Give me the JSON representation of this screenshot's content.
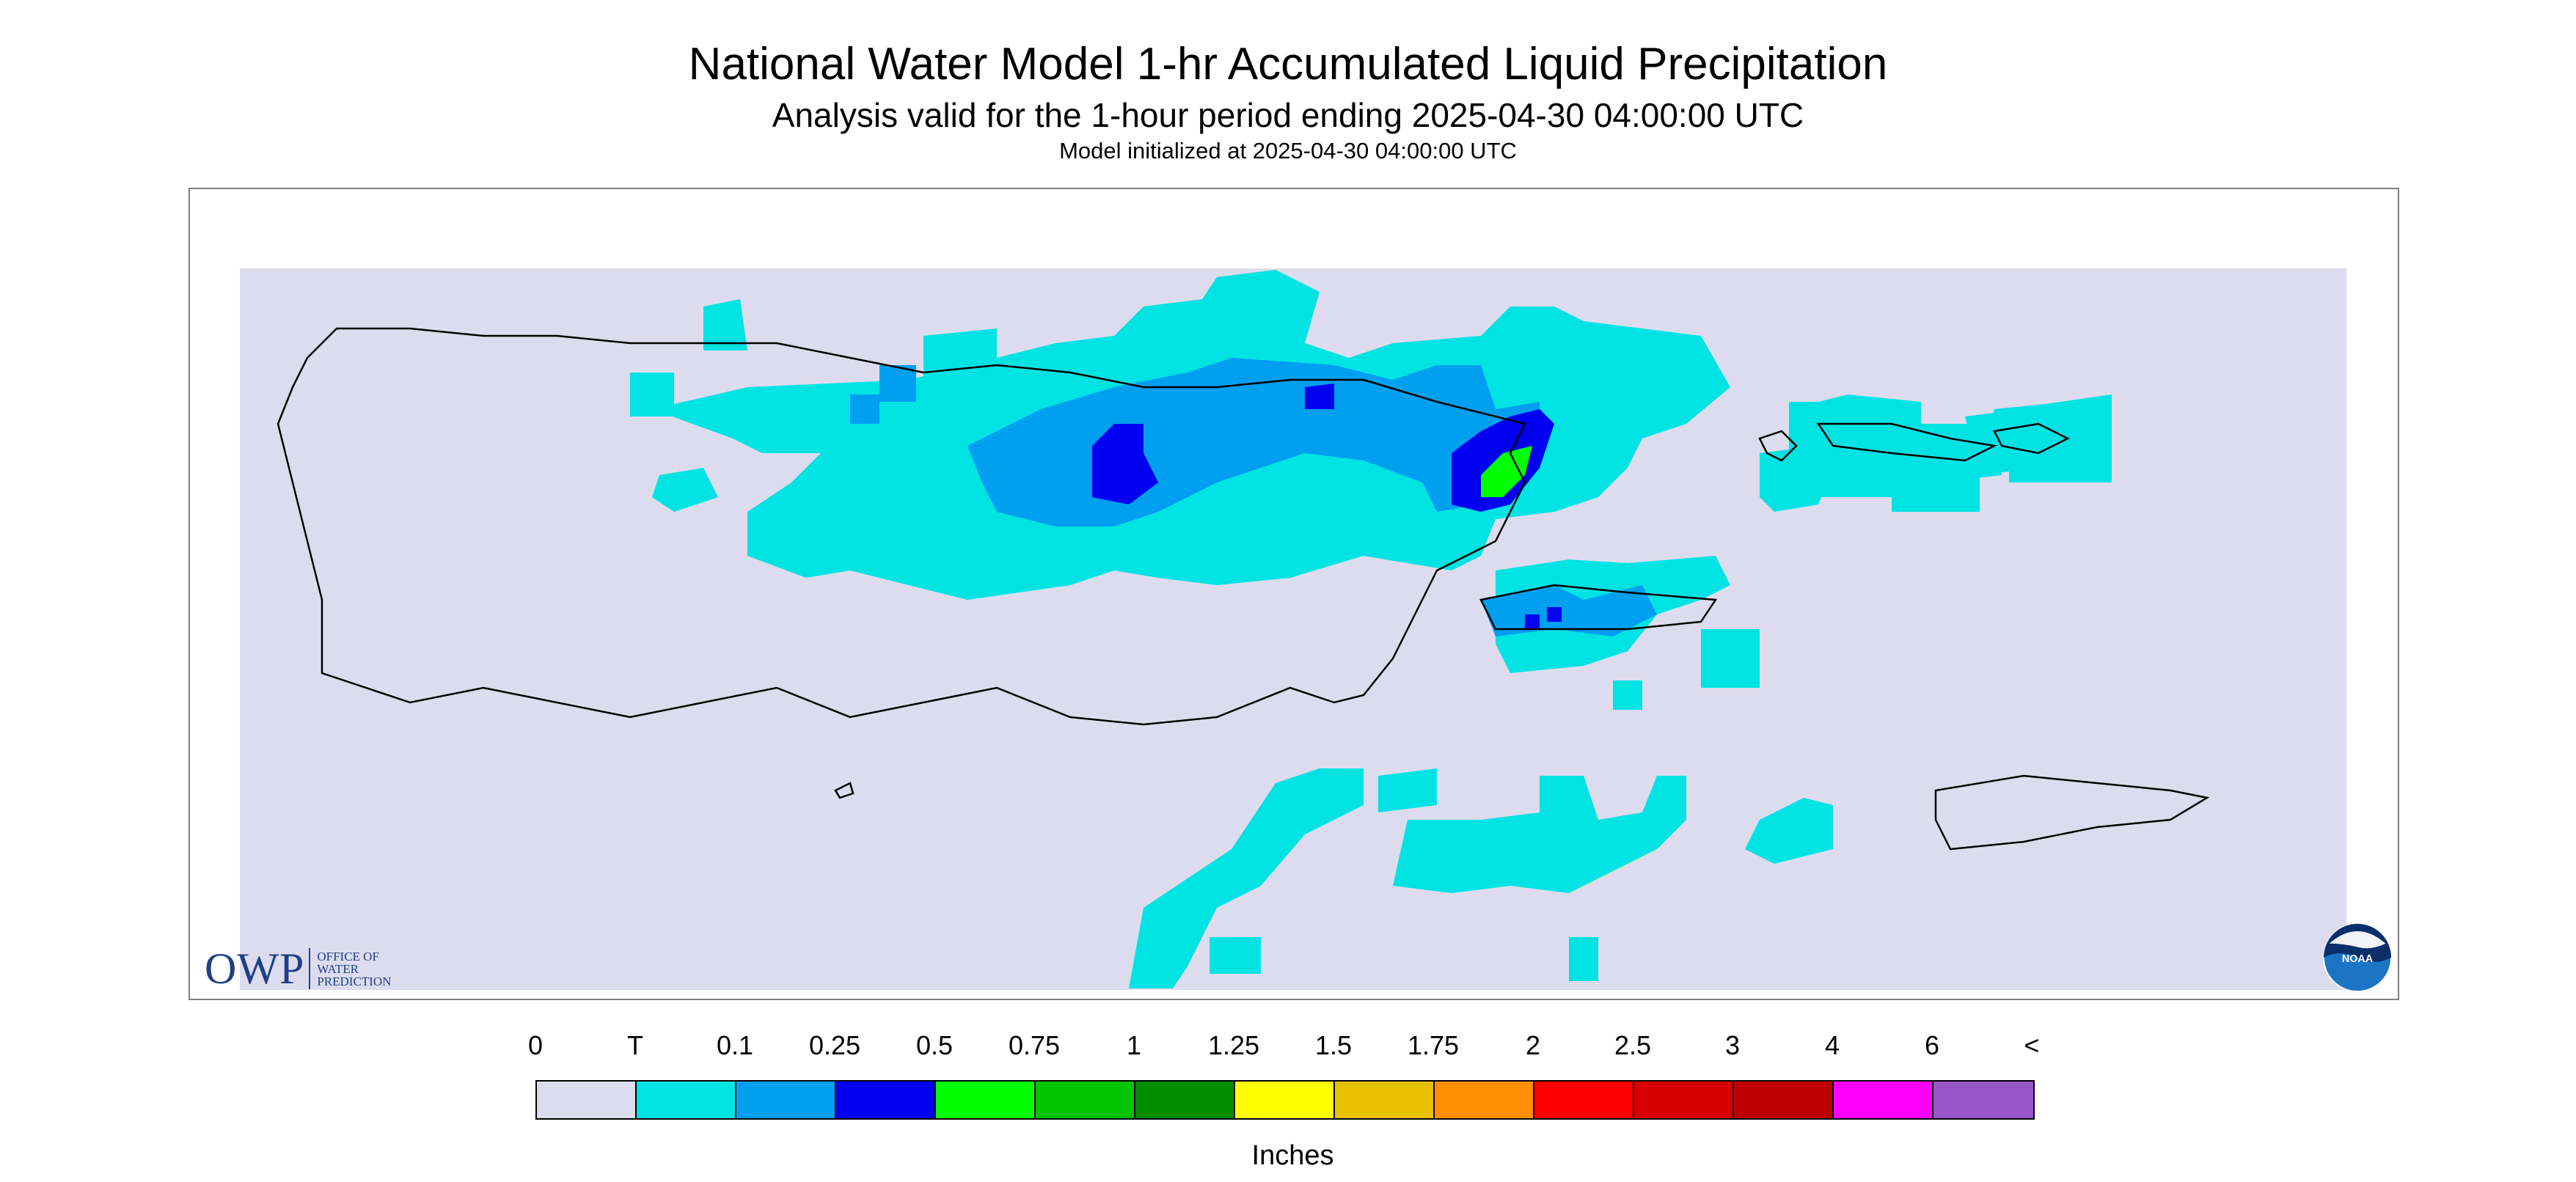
{
  "header": {
    "title": "National Water Model 1-hr Accumulated Liquid Precipitation",
    "subtitle": "Analysis valid for the 1-hour period ending 2025-04-30 04:00:00 UTC",
    "init_line": "Model initialized at 2025-04-30 04:00:00 UTC"
  },
  "map": {
    "region": "Puerto Rico and U.S. Virgin Islands",
    "background_color": "#dcdcee",
    "outline_color": "#000000",
    "precip_cells": [
      {
        "category": "T",
        "approx_lon": -67.0,
        "approx_lat": 18.48
      },
      {
        "category": "T",
        "approx_lon": -66.4,
        "approx_lat": 18.4
      },
      {
        "category": "T",
        "approx_lon": -65.7,
        "approx_lat": 18.35
      },
      {
        "category": "T",
        "approx_lon": -64.9,
        "approx_lat": 18.4
      },
      {
        "category": "T",
        "approx_lon": -65.5,
        "approx_lat": 18.1
      },
      {
        "category": "T",
        "approx_lon": -65.7,
        "approx_lat": 17.6
      },
      {
        "category": "T",
        "approx_lon": -65.2,
        "approx_lat": 17.6
      },
      {
        "category": "0.1",
        "approx_lon": -66.2,
        "approx_lat": 18.38
      },
      {
        "category": "0.1",
        "approx_lon": -65.7,
        "approx_lat": 18.38
      },
      {
        "category": "0.1",
        "approx_lon": -65.45,
        "approx_lat": 18.12
      },
      {
        "category": "0.25",
        "approx_lon": -66.2,
        "approx_lat": 18.35
      },
      {
        "category": "0.25",
        "approx_lon": -65.6,
        "approx_lat": 18.32
      },
      {
        "category": "0.5",
        "approx_lon": -65.65,
        "approx_lat": 18.32
      }
    ]
  },
  "legend": {
    "labels": [
      "0",
      "T",
      "0.1",
      "0.25",
      "0.5",
      "0.75",
      "1",
      "1.25",
      "1.5",
      "1.75",
      "2",
      "2.5",
      "3",
      "4",
      "6",
      "<"
    ],
    "colors": [
      "#dcdcee",
      "#00e3e3",
      "#009ff0",
      "#0000f0",
      "#00ff00",
      "#00c400",
      "#008e00",
      "#ffff00",
      "#e7c000",
      "#ff8f00",
      "#ff0000",
      "#d80000",
      "#bc0000",
      "#ff00ff",
      "#9955c9"
    ],
    "units": "Inches"
  },
  "logos": {
    "owp_mark": "OWP",
    "owp_text": "OFFICE OF\nWATER\nPREDICTION",
    "noaa_text": "NOAA"
  }
}
